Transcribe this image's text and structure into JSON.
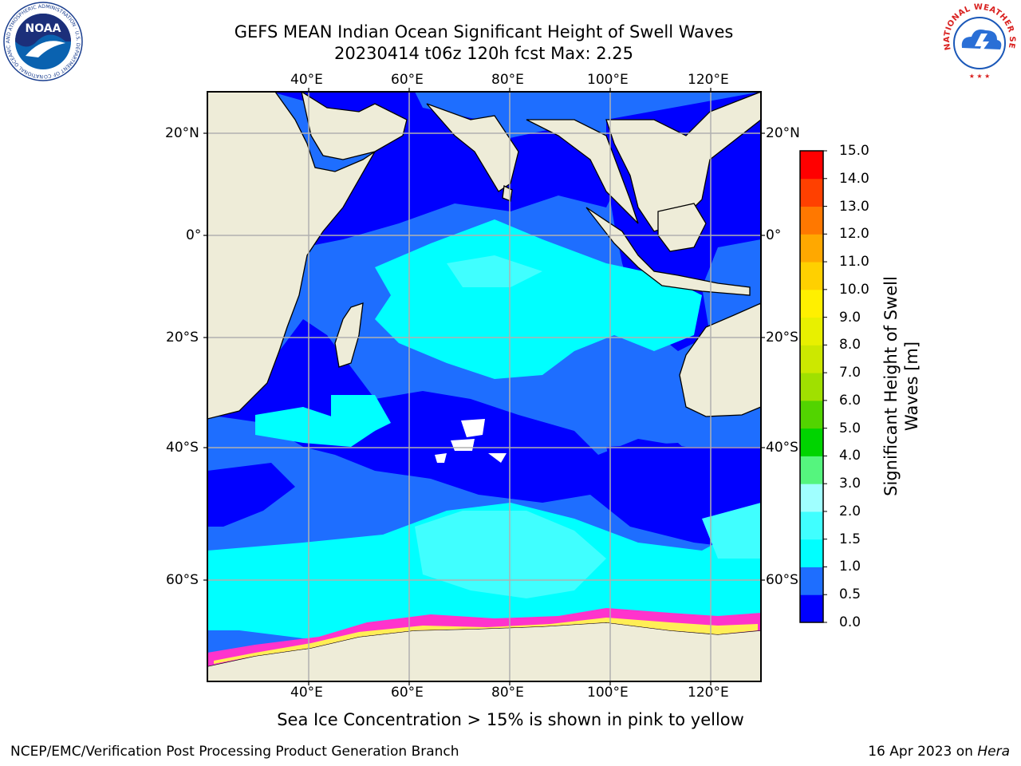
{
  "title": {
    "line1": "GEFS MEAN Indian Ocean Significant Height of Swell Waves",
    "line2": "20230414 t06z 120h fcst   Max: 2.25"
  },
  "map": {
    "lon_ticks": [
      "40°E",
      "60°E",
      "80°E",
      "100°E",
      "120°E"
    ],
    "lat_ticks": [
      "20°N",
      "0°",
      "20°S",
      "40°S",
      "60°S"
    ],
    "colors": {
      "land": "#eeecd8",
      "ice_white": "#ffffff",
      "ice_pink": "#ff33cc",
      "ice_yellow": "#ffee55",
      "grid": "#b0b0b0"
    }
  },
  "colorbar": {
    "title": "Significant Height of Swell Waves [m]",
    "title_line1": "Significant Height of Swell",
    "title_line2": "Waves [m]",
    "labels": [
      "15.0",
      "14.0",
      "13.0",
      "12.0",
      "11.0",
      "10.0",
      "9.0",
      "8.0",
      "7.0",
      "6.0",
      "5.0",
      "4.0",
      "3.0",
      "2.0",
      "1.5",
      "1.0",
      "0.5",
      "0.0"
    ],
    "colors_bottom_to_top": [
      "#0000ff",
      "#1e6eff",
      "#00ffff",
      "#40ffff",
      "#a0ffff",
      "#55f57e",
      "#00d400",
      "#52d400",
      "#a0e000",
      "#cce800",
      "#e8f000",
      "#fff000",
      "#ffd000",
      "#ffa800",
      "#ff7800",
      "#ff4000",
      "#ff0000"
    ]
  },
  "logos": {
    "noaa": "NOAA",
    "noaa_ring": "NATIONAL OCEANIC AND ATMOSPHERIC ADMINISTRATION · U.S. DEPARTMENT OF COMMERCE",
    "nws_ring": "NATIONAL WEATHER SERVICE"
  },
  "caption": "Sea Ice Concentration > 15% is shown in pink to yellow",
  "footer": {
    "left": "NCEP/EMC/Verification Post Processing Product Generation Branch",
    "date": "16 Apr 2023 on ",
    "machine": "Hera"
  }
}
